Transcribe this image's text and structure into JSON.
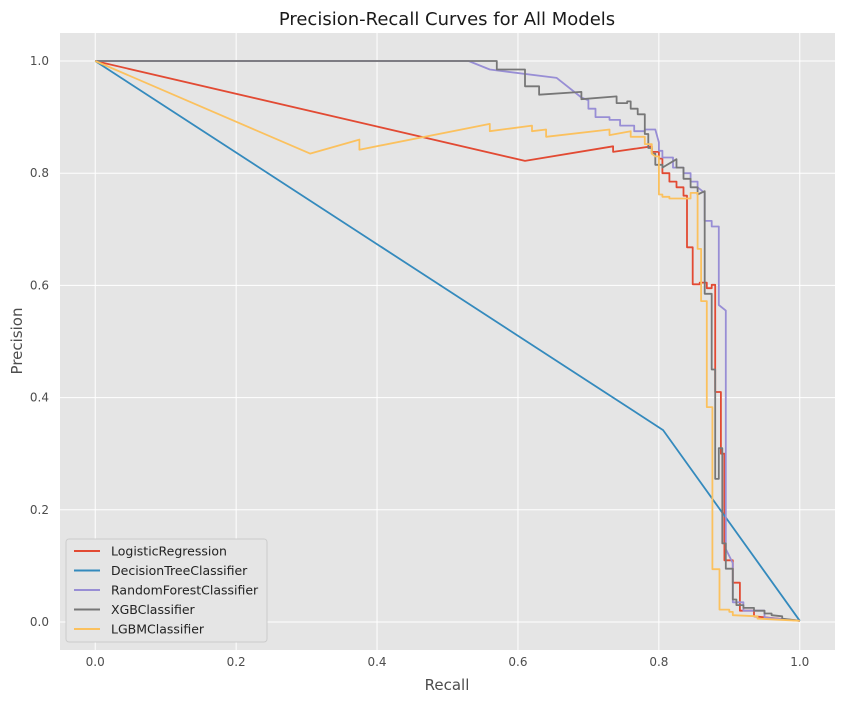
{
  "chart_data": {
    "type": "line",
    "title": "Precision-Recall Curves for All Models",
    "xlabel": "Recall",
    "ylabel": "Precision",
    "xlim": [
      -0.05,
      1.05
    ],
    "ylim": [
      -0.05,
      1.05
    ],
    "xticks": [
      0.0,
      0.2,
      0.4,
      0.6,
      0.8,
      1.0
    ],
    "yticks": [
      0.0,
      0.2,
      0.4,
      0.6,
      0.8,
      1.0
    ],
    "xtick_labels": [
      "0.0",
      "0.2",
      "0.4",
      "0.6",
      "0.8",
      "1.0"
    ],
    "ytick_labels": [
      "0.0",
      "0.2",
      "0.4",
      "0.6",
      "0.8",
      "1.0"
    ],
    "grid": true,
    "legend_position": "lower-left",
    "background_color": "#e5e5e5",
    "series": [
      {
        "name": "LogisticRegression",
        "color": "#e24a33",
        "points": [
          [
            0.0,
            1.0
          ],
          [
            0.61,
            0.822
          ],
          [
            0.735,
            0.848
          ],
          [
            0.735,
            0.838
          ],
          [
            0.79,
            0.848
          ],
          [
            0.79,
            0.838
          ],
          [
            0.8,
            0.838
          ],
          [
            0.8,
            0.826
          ],
          [
            0.805,
            0.826
          ],
          [
            0.805,
            0.8
          ],
          [
            0.815,
            0.8
          ],
          [
            0.815,
            0.785
          ],
          [
            0.825,
            0.785
          ],
          [
            0.825,
            0.775
          ],
          [
            0.835,
            0.775
          ],
          [
            0.835,
            0.76
          ],
          [
            0.84,
            0.76
          ],
          [
            0.84,
            0.668
          ],
          [
            0.848,
            0.668
          ],
          [
            0.848,
            0.602
          ],
          [
            0.858,
            0.602
          ],
          [
            0.858,
            0.605
          ],
          [
            0.868,
            0.605
          ],
          [
            0.868,
            0.595
          ],
          [
            0.875,
            0.595
          ],
          [
            0.875,
            0.601
          ],
          [
            0.88,
            0.601
          ],
          [
            0.88,
            0.41
          ],
          [
            0.888,
            0.41
          ],
          [
            0.888,
            0.3
          ],
          [
            0.893,
            0.3
          ],
          [
            0.893,
            0.11
          ],
          [
            0.905,
            0.11
          ],
          [
            0.905,
            0.07
          ],
          [
            0.915,
            0.07
          ],
          [
            0.915,
            0.02
          ],
          [
            0.935,
            0.02
          ],
          [
            0.935,
            0.01
          ],
          [
            1.0,
            0.002
          ]
        ]
      },
      {
        "name": "DecisionTreeClassifier",
        "color": "#348abd",
        "points": [
          [
            0.0,
            1.0
          ],
          [
            0.806,
            0.342
          ],
          [
            1.0,
            0.002
          ]
        ]
      },
      {
        "name": "RandomForestClassifier",
        "color": "#988ed5",
        "points": [
          [
            0.0,
            1.0
          ],
          [
            0.53,
            1.0
          ],
          [
            0.56,
            0.985
          ],
          [
            0.655,
            0.97
          ],
          [
            0.69,
            0.935
          ],
          [
            0.7,
            0.93
          ],
          [
            0.7,
            0.915
          ],
          [
            0.71,
            0.915
          ],
          [
            0.71,
            0.9
          ],
          [
            0.73,
            0.9
          ],
          [
            0.73,
            0.895
          ],
          [
            0.745,
            0.895
          ],
          [
            0.745,
            0.885
          ],
          [
            0.765,
            0.885
          ],
          [
            0.765,
            0.875
          ],
          [
            0.78,
            0.875
          ],
          [
            0.78,
            0.878
          ],
          [
            0.795,
            0.878
          ],
          [
            0.8,
            0.855
          ],
          [
            0.8,
            0.84
          ],
          [
            0.805,
            0.84
          ],
          [
            0.805,
            0.828
          ],
          [
            0.82,
            0.828
          ],
          [
            0.82,
            0.81
          ],
          [
            0.835,
            0.81
          ],
          [
            0.835,
            0.8
          ],
          [
            0.845,
            0.8
          ],
          [
            0.845,
            0.785
          ],
          [
            0.855,
            0.785
          ],
          [
            0.855,
            0.775
          ],
          [
            0.865,
            0.765
          ],
          [
            0.865,
            0.715
          ],
          [
            0.875,
            0.715
          ],
          [
            0.875,
            0.705
          ],
          [
            0.885,
            0.705
          ],
          [
            0.885,
            0.565
          ],
          [
            0.895,
            0.555
          ],
          [
            0.895,
            0.13
          ],
          [
            0.905,
            0.105
          ],
          [
            0.905,
            0.035
          ],
          [
            0.92,
            0.035
          ],
          [
            0.92,
            0.02
          ],
          [
            0.95,
            0.02
          ],
          [
            0.95,
            0.008
          ],
          [
            1.0,
            0.002
          ]
        ]
      },
      {
        "name": "XGBClassifier",
        "color": "#777777",
        "points": [
          [
            0.0,
            1.0
          ],
          [
            0.57,
            1.0
          ],
          [
            0.57,
            0.985
          ],
          [
            0.61,
            0.985
          ],
          [
            0.61,
            0.955
          ],
          [
            0.63,
            0.955
          ],
          [
            0.63,
            0.94
          ],
          [
            0.69,
            0.945
          ],
          [
            0.69,
            0.932
          ],
          [
            0.74,
            0.937
          ],
          [
            0.74,
            0.925
          ],
          [
            0.755,
            0.925
          ],
          [
            0.755,
            0.928
          ],
          [
            0.76,
            0.928
          ],
          [
            0.76,
            0.915
          ],
          [
            0.77,
            0.915
          ],
          [
            0.77,
            0.905
          ],
          [
            0.78,
            0.905
          ],
          [
            0.78,
            0.87
          ],
          [
            0.785,
            0.87
          ],
          [
            0.785,
            0.845
          ],
          [
            0.79,
            0.845
          ],
          [
            0.79,
            0.835
          ],
          [
            0.795,
            0.835
          ],
          [
            0.795,
            0.815
          ],
          [
            0.805,
            0.815
          ],
          [
            0.805,
            0.81
          ],
          [
            0.825,
            0.825
          ],
          [
            0.825,
            0.81
          ],
          [
            0.835,
            0.81
          ],
          [
            0.835,
            0.79
          ],
          [
            0.845,
            0.79
          ],
          [
            0.845,
            0.775
          ],
          [
            0.855,
            0.775
          ],
          [
            0.855,
            0.762
          ],
          [
            0.865,
            0.768
          ],
          [
            0.865,
            0.585
          ],
          [
            0.875,
            0.585
          ],
          [
            0.875,
            0.45
          ],
          [
            0.88,
            0.45
          ],
          [
            0.88,
            0.255
          ],
          [
            0.885,
            0.255
          ],
          [
            0.885,
            0.31
          ],
          [
            0.89,
            0.31
          ],
          [
            0.89,
            0.14
          ],
          [
            0.895,
            0.14
          ],
          [
            0.895,
            0.095
          ],
          [
            0.905,
            0.095
          ],
          [
            0.905,
            0.04
          ],
          [
            0.91,
            0.04
          ],
          [
            0.91,
            0.03
          ],
          [
            0.92,
            0.03
          ],
          [
            0.92,
            0.025
          ],
          [
            0.935,
            0.025
          ],
          [
            0.935,
            0.02
          ],
          [
            0.95,
            0.02
          ],
          [
            0.95,
            0.015
          ],
          [
            0.96,
            0.015
          ],
          [
            0.96,
            0.012
          ],
          [
            0.975,
            0.01
          ],
          [
            0.975,
            0.006
          ],
          [
            1.0,
            0.002
          ]
        ]
      },
      {
        "name": "LGBMClassifier",
        "color": "#fbc15e",
        "points": [
          [
            0.0,
            1.0
          ],
          [
            0.305,
            0.835
          ],
          [
            0.375,
            0.86
          ],
          [
            0.375,
            0.842
          ],
          [
            0.56,
            0.888
          ],
          [
            0.56,
            0.875
          ],
          [
            0.62,
            0.885
          ],
          [
            0.62,
            0.875
          ],
          [
            0.64,
            0.878
          ],
          [
            0.64,
            0.865
          ],
          [
            0.73,
            0.878
          ],
          [
            0.73,
            0.868
          ],
          [
            0.76,
            0.875
          ],
          [
            0.76,
            0.865
          ],
          [
            0.78,
            0.865
          ],
          [
            0.78,
            0.852
          ],
          [
            0.79,
            0.852
          ],
          [
            0.79,
            0.835
          ],
          [
            0.795,
            0.83
          ],
          [
            0.8,
            0.83
          ],
          [
            0.8,
            0.762
          ],
          [
            0.805,
            0.762
          ],
          [
            0.805,
            0.758
          ],
          [
            0.815,
            0.758
          ],
          [
            0.815,
            0.755
          ],
          [
            0.845,
            0.755
          ],
          [
            0.845,
            0.765
          ],
          [
            0.855,
            0.765
          ],
          [
            0.855,
            0.665
          ],
          [
            0.86,
            0.665
          ],
          [
            0.86,
            0.572
          ],
          [
            0.868,
            0.572
          ],
          [
            0.868,
            0.383
          ],
          [
            0.876,
            0.383
          ],
          [
            0.876,
            0.094
          ],
          [
            0.886,
            0.094
          ],
          [
            0.886,
            0.022
          ],
          [
            0.9,
            0.022
          ],
          [
            0.9,
            0.018
          ],
          [
            0.905,
            0.018
          ],
          [
            0.905,
            0.012
          ],
          [
            0.94,
            0.01
          ],
          [
            0.94,
            0.006
          ],
          [
            1.0,
            0.002
          ]
        ]
      }
    ]
  }
}
